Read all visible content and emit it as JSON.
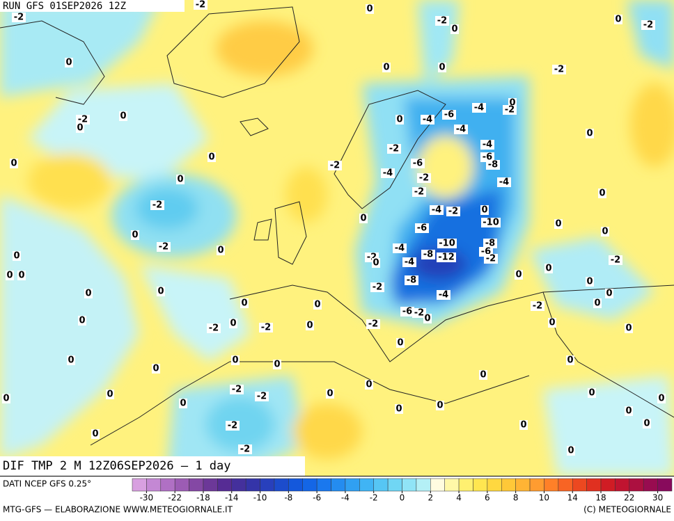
{
  "header": {
    "run": "RUN GFS 01SEP2026 12Z",
    "field": "DIF TMP 2 M 12Z06SEP2026 — 1 day"
  },
  "map": {
    "labels": [
      -2,
      -2,
      0,
      -2,
      0,
      0,
      -2,
      0,
      0,
      0,
      -2,
      0,
      -2,
      -4,
      -6,
      -4,
      0,
      -4,
      -2,
      0,
      0,
      0,
      -2,
      -4,
      -6,
      -8,
      -2,
      0,
      0,
      -6,
      -4,
      -2,
      -4,
      0,
      -2,
      0,
      -2,
      -4,
      -2,
      0,
      0,
      0,
      -10,
      -6,
      0,
      0,
      -2,
      0,
      -8,
      -10,
      -4,
      -8,
      -12,
      -6,
      -2,
      0,
      0,
      0,
      -2,
      0,
      -4,
      0,
      0,
      -2,
      -8,
      -2,
      0,
      0,
      -4,
      0,
      0,
      0,
      0,
      0,
      -2,
      -6,
      -2,
      0,
      0,
      -2,
      0,
      -2,
      0,
      -2,
      0,
      0,
      0,
      0,
      0,
      0,
      0,
      0,
      0,
      0,
      -2,
      -2,
      0,
      0,
      0,
      0,
      0,
      0,
      0,
      0,
      0,
      -2,
      0,
      0,
      0,
      -2,
      0
    ]
  },
  "legend": {
    "source": "DATI NCEP GFS 0.25°",
    "ticks": [
      -30,
      -22,
      -18,
      -14,
      -10,
      -8,
      -6,
      -4,
      -2,
      0,
      2,
      4,
      6,
      8,
      10,
      14,
      18,
      22,
      30
    ],
    "colors": [
      "#d8a0e0",
      "#c488d4",
      "#b070c4",
      "#9c5cb4",
      "#8448a4",
      "#6c3898",
      "#562c94",
      "#44309c",
      "#3434a8",
      "#2840bc",
      "#1c4ccc",
      "#1458dc",
      "#1466e6",
      "#1a78ee",
      "#248cf0",
      "#30a0f2",
      "#40b4f4",
      "#56c6f4",
      "#70d6f4",
      "#90e4f6",
      "#b4f0f6",
      "#fffce0",
      "#fff8a8",
      "#fff070",
      "#ffe650",
      "#ffd840",
      "#ffc838",
      "#ffb434",
      "#ff9c30",
      "#ff8028",
      "#f86424",
      "#ec4820",
      "#e03020",
      "#d01c24",
      "#c01430",
      "#ac1040",
      "#980c50",
      "#880a5c"
    ]
  },
  "footer": {
    "left": "MTG-GFS — ELABORAZIONE WWW.METEOGIORNALE.IT",
    "right": "(C) METEOGIORNALE"
  }
}
